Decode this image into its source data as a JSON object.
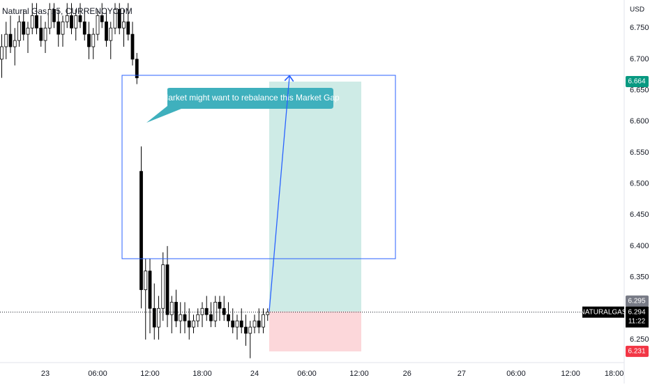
{
  "chart_data": {
    "type": "candlestick",
    "title": "Natural Gas, 15, CURRENCYCOM",
    "currency": "USD",
    "annotation": "Market might want to rebalance this Market Gap",
    "countdown": "11:22",
    "series": [
      {
        "name": "NATURALGAS",
        "color": "#000000",
        "x": [
          -20,
          -18,
          -16,
          -14,
          -12,
          -10,
          -8,
          -6,
          -4,
          -2,
          0,
          2,
          4,
          6,
          8,
          10,
          12,
          14,
          16,
          18,
          20,
          22,
          24,
          26,
          28,
          30,
          32,
          34,
          36,
          38,
          40,
          42,
          44,
          46,
          48,
          50,
          52,
          54,
          56,
          58,
          60,
          62,
          64,
          66,
          68,
          70,
          72,
          74,
          76,
          78,
          80,
          82,
          84,
          86,
          88,
          90,
          92,
          94,
          96,
          98,
          100,
          102
        ],
        "open": [
          6.7,
          6.72,
          6.74,
          6.72,
          6.73,
          6.76,
          6.74,
          6.75,
          6.77,
          6.75,
          6.73,
          6.75,
          6.78,
          6.76,
          6.74,
          6.76,
          6.77,
          6.75,
          6.77,
          6.76,
          6.74,
          6.72,
          6.74,
          6.77,
          6.76,
          6.73,
          6.75,
          6.78,
          6.75,
          6.76,
          6.74,
          6.7,
          6.52,
          6.33,
          6.36,
          6.3,
          6.27,
          6.3,
          6.37,
          6.29,
          6.31,
          6.28,
          6.29,
          6.28,
          6.27,
          6.28,
          6.29,
          6.3,
          6.29,
          6.28,
          6.31,
          6.3,
          6.29,
          6.28,
          6.27,
          6.28,
          6.27,
          6.26,
          6.27,
          6.28,
          6.27,
          6.29
        ],
        "high": [
          6.74,
          6.76,
          6.77,
          6.75,
          6.77,
          6.78,
          6.76,
          6.79,
          6.79,
          6.77,
          6.76,
          6.79,
          6.79,
          6.78,
          6.77,
          6.79,
          6.79,
          6.78,
          6.79,
          6.78,
          6.76,
          6.75,
          6.78,
          6.79,
          6.78,
          6.76,
          6.79,
          6.79,
          6.78,
          6.79,
          6.76,
          6.71,
          6.56,
          6.38,
          6.38,
          6.34,
          6.32,
          6.39,
          6.4,
          6.32,
          6.33,
          6.31,
          6.31,
          6.3,
          6.29,
          6.3,
          6.31,
          6.32,
          6.31,
          6.32,
          6.32,
          6.32,
          6.31,
          6.3,
          6.29,
          6.3,
          6.29,
          6.28,
          6.29,
          6.3,
          6.3,
          6.3
        ],
        "low": [
          6.67,
          6.7,
          6.71,
          6.69,
          6.72,
          6.73,
          6.71,
          6.74,
          6.74,
          6.72,
          6.71,
          6.74,
          6.75,
          6.72,
          6.72,
          6.75,
          6.74,
          6.73,
          6.75,
          6.73,
          6.7,
          6.7,
          6.73,
          6.75,
          6.72,
          6.7,
          6.74,
          6.74,
          6.72,
          6.73,
          6.69,
          6.66,
          6.3,
          6.25,
          6.26,
          6.25,
          6.25,
          6.28,
          6.27,
          6.26,
          6.27,
          6.26,
          6.26,
          6.25,
          6.26,
          6.27,
          6.27,
          6.28,
          6.27,
          6.27,
          6.28,
          6.28,
          6.27,
          6.26,
          6.25,
          6.26,
          6.24,
          6.22,
          6.26,
          6.26,
          6.26,
          6.28
        ],
        "close": [
          6.72,
          6.74,
          6.72,
          6.73,
          6.76,
          6.74,
          6.75,
          6.77,
          6.75,
          6.73,
          6.75,
          6.78,
          6.76,
          6.74,
          6.76,
          6.77,
          6.75,
          6.77,
          6.76,
          6.74,
          6.72,
          6.74,
          6.77,
          6.76,
          6.73,
          6.75,
          6.78,
          6.75,
          6.76,
          6.74,
          6.7,
          6.67,
          6.33,
          6.36,
          6.3,
          6.27,
          6.3,
          6.37,
          6.29,
          6.31,
          6.28,
          6.29,
          6.28,
          6.27,
          6.28,
          6.29,
          6.3,
          6.29,
          6.28,
          6.31,
          6.3,
          6.29,
          6.28,
          6.27,
          6.28,
          6.27,
          6.26,
          6.27,
          6.28,
          6.27,
          6.29,
          6.294
        ]
      }
    ],
    "position": {
      "target": 6.664,
      "entry": 6.295,
      "stop": 6.231,
      "target_color": "#089981",
      "entry_color": "#787b86",
      "stop_color": "#f23645"
    },
    "xlim": [
      -20.8,
      265.6
    ],
    "xticks": [
      {
        "value": 0,
        "label": "23"
      },
      {
        "value": 24,
        "label": "06:00"
      },
      {
        "value": 48,
        "label": "12:00"
      },
      {
        "value": 72,
        "label": "18:00"
      },
      {
        "value": 96,
        "label": "24"
      },
      {
        "value": 120,
        "label": "06:00"
      },
      {
        "value": 144,
        "label": "12:00"
      },
      {
        "value": 166,
        "label": "26"
      },
      {
        "value": 191,
        "label": "27"
      },
      {
        "value": 216,
        "label": "06:00"
      },
      {
        "value": 241,
        "label": "12:00"
      },
      {
        "value": 261,
        "label": "18:00"
      }
    ],
    "ylim": [
      6.213,
      6.795
    ],
    "yticks": [
      {
        "value": 6.25,
        "label": "6.250"
      },
      {
        "value": 6.35,
        "label": "6.350"
      },
      {
        "value": 6.4,
        "label": "6.400"
      },
      {
        "value": 6.45,
        "label": "6.450"
      },
      {
        "value": 6.5,
        "label": "6.500"
      },
      {
        "value": 6.55,
        "label": "6.550"
      },
      {
        "value": 6.6,
        "label": "6.600"
      },
      {
        "value": 6.65,
        "label": "6.650"
      },
      {
        "value": 6.7,
        "label": "6.700"
      },
      {
        "value": 6.75,
        "label": "6.750"
      }
    ]
  }
}
